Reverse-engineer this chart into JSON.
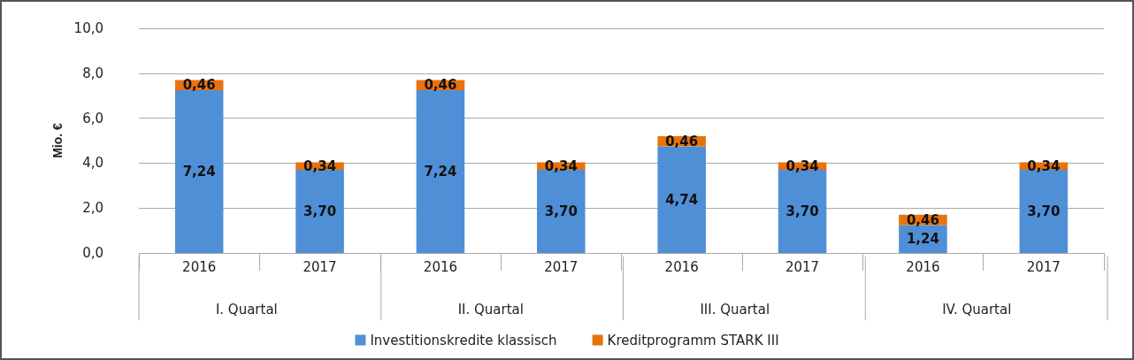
{
  "chart_data": {
    "type": "bar",
    "stacked": true,
    "ylabel": "Mio. €",
    "categories": [
      "2016",
      "2017",
      "2016",
      "2017",
      "2016",
      "2017",
      "2016",
      "2017"
    ],
    "series": [
      {
        "name": "Investitionskredite klassisch",
        "color": "#4f8fd6",
        "values": [
          7.24,
          3.7,
          7.24,
          3.7,
          4.74,
          3.7,
          1.24,
          3.7
        ],
        "value_labels": [
          "7,24",
          "3,70",
          "7,24",
          "3,70",
          "4,74",
          "3,70",
          "1,24",
          "3,70"
        ]
      },
      {
        "name": "Kreditprogramm STARK III",
        "color": "#e8730c",
        "values": [
          0.46,
          0.34,
          0.46,
          0.34,
          0.46,
          0.34,
          0.46,
          0.34
        ],
        "value_labels": [
          "0,46",
          "0,34",
          "0,46",
          "0,34",
          "0,46",
          "0,34",
          "0,46",
          "0,34"
        ]
      }
    ],
    "annotations": [
      "I. Quartal",
      "II. Quartal",
      "III. Quartal",
      "IV. Quartal"
    ],
    "ylim": [
      0,
      10
    ],
    "yticks": [
      {
        "value": 0,
        "label": "0,0"
      },
      {
        "value": 2,
        "label": "2,0"
      },
      {
        "value": 4,
        "label": "4,0"
      },
      {
        "value": 6,
        "label": "6,0"
      },
      {
        "value": 8,
        "label": "8,0"
      },
      {
        "value": 10,
        "label": "10,0"
      }
    ],
    "grid": "y",
    "legend": "bottom"
  }
}
